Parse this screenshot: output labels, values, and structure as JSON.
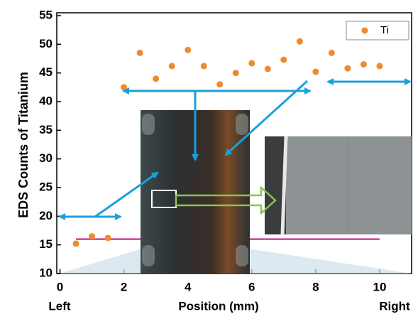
{
  "chart_data": {
    "type": "scatter",
    "y_label": "EDS Counts of Titanium",
    "x_label": "Position (mm)",
    "x_left_label": "Left",
    "x_right_label": "Right",
    "series": [
      {
        "name": "Ti",
        "color": "#f08a2c",
        "x": [
          0.5,
          1,
          1.5,
          2,
          2.5,
          3,
          3.5,
          4,
          4.5,
          5,
          5.5,
          6,
          6.5,
          7,
          7.5,
          8,
          8.5,
          9,
          9.5,
          10
        ],
        "values": [
          15.2,
          16.5,
          16.2,
          42.5,
          48.5,
          44,
          46.2,
          49,
          46.2,
          43,
          45,
          46.7,
          45.7,
          47.3,
          50.5,
          45.2,
          48.5,
          45.8,
          46.5,
          46.2
        ]
      }
    ],
    "baseline": {
      "x": [
        0.5,
        10
      ],
      "y": 16,
      "color": "#d0409a"
    },
    "xlim": [
      -0.1,
      11
    ],
    "ylim": [
      10,
      55
    ],
    "xticks": [
      0,
      2,
      4,
      6,
      8,
      10
    ],
    "yticks": [
      10,
      15,
      20,
      25,
      30,
      35,
      40,
      45,
      50,
      55
    ],
    "grid": false,
    "legend": "top-right"
  }
}
